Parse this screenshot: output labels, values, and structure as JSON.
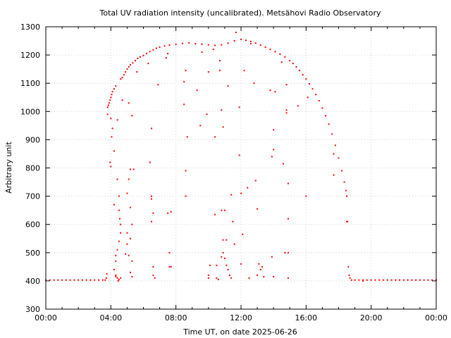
{
  "chart_data": {
    "type": "scatter",
    "title": "Total UV radiation intensity (uncalibrated). Metsähovi Radio Observatory",
    "xlabel": "Time UT, on date 2025-06-26",
    "ylabel": "Arbitrary unit",
    "xlim": [
      0,
      24
    ],
    "ylim": [
      300,
      1300
    ],
    "x_ticks": [
      {
        "value": 0,
        "label": "00:00"
      },
      {
        "value": 4,
        "label": "04:00"
      },
      {
        "value": 8,
        "label": "08:00"
      },
      {
        "value": 12,
        "label": "12:00"
      },
      {
        "value": 16,
        "label": "16:00"
      },
      {
        "value": 20,
        "label": "20:00"
      },
      {
        "value": 24,
        "label": "00:00"
      }
    ],
    "y_ticks": [
      {
        "value": 300,
        "label": "300"
      },
      {
        "value": 400,
        "label": "400"
      },
      {
        "value": 500,
        "label": "500"
      },
      {
        "value": 600,
        "label": "600"
      },
      {
        "value": 700,
        "label": "700"
      },
      {
        "value": 800,
        "label": "800"
      },
      {
        "value": 900,
        "label": "900"
      },
      {
        "value": 1000,
        "label": "1000"
      },
      {
        "value": 1100,
        "label": "1100"
      },
      {
        "value": 1200,
        "label": "1200"
      },
      {
        "value": 1300,
        "label": "1300"
      }
    ],
    "grid": true,
    "marker_color": "#ff0000",
    "series": [
      {
        "points": [
          [
            0.0,
            403
          ],
          [
            0.25,
            403
          ],
          [
            0.5,
            403
          ],
          [
            0.75,
            403
          ],
          [
            1.0,
            403
          ],
          [
            1.25,
            403
          ],
          [
            1.5,
            403
          ],
          [
            1.75,
            403
          ],
          [
            2.0,
            403
          ],
          [
            2.25,
            403
          ],
          [
            2.5,
            403
          ],
          [
            2.75,
            403
          ],
          [
            3.0,
            403
          ],
          [
            3.25,
            403
          ],
          [
            3.5,
            403
          ],
          [
            3.65,
            403
          ],
          [
            3.72,
            410
          ],
          [
            3.75,
            425
          ],
          [
            3.8,
            1015
          ],
          [
            3.85,
            1022
          ],
          [
            3.9,
            1030
          ],
          [
            3.95,
            1040
          ],
          [
            4.0,
            1050
          ],
          [
            4.05,
            1060
          ],
          [
            4.1,
            1070
          ],
          [
            4.2,
            1080
          ],
          [
            4.3,
            1090
          ],
          [
            4.6,
            1115
          ],
          [
            4.7,
            1120
          ],
          [
            4.8,
            1130
          ],
          [
            4.9,
            1140
          ],
          [
            5.0,
            1150
          ],
          [
            5.1,
            1158
          ],
          [
            5.2,
            1165
          ],
          [
            5.35,
            1172
          ],
          [
            5.5,
            1180
          ],
          [
            5.65,
            1188
          ],
          [
            5.8,
            1193
          ],
          [
            6.0,
            1198
          ],
          [
            6.2,
            1205
          ],
          [
            6.4,
            1212
          ],
          [
            6.6,
            1218
          ],
          [
            6.8,
            1224
          ],
          [
            7.0,
            1228
          ],
          [
            7.3,
            1232
          ],
          [
            7.6,
            1235
          ],
          [
            8.0,
            1238
          ],
          [
            8.4,
            1241
          ],
          [
            8.8,
            1243
          ],
          [
            9.2,
            1240
          ],
          [
            9.6,
            1238
          ],
          [
            10.0,
            1236
          ],
          [
            10.4,
            1234
          ],
          [
            10.8,
            1236
          ],
          [
            11.2,
            1242
          ],
          [
            11.6,
            1250
          ],
          [
            12.0,
            1255
          ],
          [
            12.3,
            1252
          ],
          [
            12.6,
            1248
          ],
          [
            12.9,
            1242
          ],
          [
            13.2,
            1235
          ],
          [
            13.5,
            1228
          ],
          [
            13.8,
            1220
          ],
          [
            14.1,
            1212
          ],
          [
            14.4,
            1203
          ],
          [
            14.7,
            1193
          ],
          [
            15.0,
            1180
          ],
          [
            15.2,
            1170
          ],
          [
            15.4,
            1158
          ],
          [
            15.6,
            1145
          ],
          [
            15.8,
            1130
          ],
          [
            16.0,
            1115
          ],
          [
            16.2,
            1098
          ],
          [
            16.4,
            1080
          ],
          [
            16.6,
            1060
          ],
          [
            16.8,
            1038
          ],
          [
            17.0,
            1012
          ],
          [
            17.2,
            985
          ],
          [
            17.4,
            955
          ],
          [
            17.6,
            920
          ],
          [
            17.8,
            880
          ],
          [
            18.0,
            835
          ],
          [
            18.2,
            790
          ],
          [
            18.35,
            750
          ],
          [
            18.45,
            720
          ],
          [
            18.5,
            700
          ],
          [
            18.55,
            610
          ],
          [
            18.6,
            450
          ],
          [
            18.65,
            420
          ],
          [
            18.7,
            410
          ],
          [
            18.8,
            403
          ],
          [
            19.0,
            403
          ],
          [
            19.25,
            403
          ],
          [
            19.5,
            403
          ],
          [
            19.75,
            403
          ],
          [
            20.0,
            403
          ],
          [
            20.25,
            403
          ],
          [
            20.5,
            403
          ],
          [
            20.75,
            403
          ],
          [
            21.0,
            403
          ],
          [
            21.25,
            403
          ],
          [
            21.5,
            403
          ],
          [
            21.75,
            403
          ],
          [
            22.0,
            403
          ],
          [
            22.25,
            403
          ],
          [
            22.5,
            403
          ],
          [
            22.75,
            403
          ],
          [
            23.0,
            403
          ],
          [
            23.25,
            403
          ],
          [
            23.5,
            403
          ],
          [
            23.75,
            403
          ],
          [
            24.0,
            403
          ],
          [
            3.8,
            990
          ],
          [
            4.0,
            975
          ],
          [
            4.1,
            940
          ],
          [
            4.05,
            910
          ],
          [
            4.2,
            860
          ],
          [
            3.95,
            820
          ],
          [
            4.0,
            805
          ],
          [
            4.4,
            760
          ],
          [
            4.5,
            700
          ],
          [
            4.5,
            650
          ],
          [
            4.2,
            670
          ],
          [
            4.55,
            620
          ],
          [
            4.6,
            600
          ],
          [
            4.6,
            570
          ],
          [
            4.5,
            540
          ],
          [
            4.4,
            510
          ],
          [
            4.3,
            490
          ],
          [
            4.3,
            470
          ],
          [
            4.2,
            440
          ],
          [
            4.3,
            420
          ],
          [
            4.4,
            410
          ],
          [
            4.5,
            405
          ],
          [
            4.4,
            970
          ],
          [
            4.7,
            1040
          ],
          [
            5.1,
            1030
          ],
          [
            5.3,
            985
          ],
          [
            5.2,
            795
          ],
          [
            5.4,
            795
          ],
          [
            5.1,
            760
          ],
          [
            5.0,
            710
          ],
          [
            5.2,
            660
          ],
          [
            5.3,
            600
          ],
          [
            5.0,
            570
          ],
          [
            5.2,
            550
          ],
          [
            5.0,
            530
          ],
          [
            4.9,
            495
          ],
          [
            5.1,
            490
          ],
          [
            5.3,
            470
          ],
          [
            5.2,
            430
          ],
          [
            5.3,
            415
          ],
          [
            5.6,
            1140
          ],
          [
            6.3,
            1170
          ],
          [
            6.5,
            940
          ],
          [
            6.4,
            820
          ],
          [
            6.5,
            700
          ],
          [
            6.5,
            690
          ],
          [
            6.6,
            640
          ],
          [
            6.5,
            610
          ],
          [
            6.6,
            450
          ],
          [
            6.6,
            420
          ],
          [
            6.7,
            410
          ],
          [
            6.9,
            1095
          ],
          [
            7.4,
            1190
          ],
          [
            7.5,
            1205
          ],
          [
            7.6,
            500
          ],
          [
            7.7,
            450
          ],
          [
            7.5,
            640
          ],
          [
            7.7,
            645
          ],
          [
            7.6,
            450
          ],
          [
            8.5,
            1025
          ],
          [
            8.6,
            1145
          ],
          [
            8.5,
            1105
          ],
          [
            8.7,
            910
          ],
          [
            8.6,
            790
          ],
          [
            8.6,
            700
          ],
          [
            9.3,
            1075
          ],
          [
            9.5,
            950
          ],
          [
            9.6,
            1210
          ],
          [
            9.9,
            990
          ],
          [
            10.0,
            1140
          ],
          [
            10.0,
            420
          ],
          [
            10.0,
            410
          ],
          [
            10.1,
            455
          ],
          [
            10.3,
            1220
          ],
          [
            10.4,
            910
          ],
          [
            10.4,
            635
          ],
          [
            10.5,
            455
          ],
          [
            10.5,
            410
          ],
          [
            10.6,
            405
          ],
          [
            10.7,
            1145
          ],
          [
            10.7,
            1180
          ],
          [
            10.8,
            1005
          ],
          [
            10.9,
            945
          ],
          [
            10.8,
            650
          ],
          [
            11.0,
            650
          ],
          [
            10.9,
            545
          ],
          [
            11.1,
            545
          ],
          [
            10.9,
            500
          ],
          [
            10.8,
            485
          ],
          [
            11.0,
            480
          ],
          [
            11.1,
            455
          ],
          [
            11.2,
            440
          ],
          [
            11.3,
            420
          ],
          [
            11.4,
            410
          ],
          [
            11.2,
            1090
          ],
          [
            11.4,
            705
          ],
          [
            11.5,
            610
          ],
          [
            11.6,
            530
          ],
          [
            11.7,
            1280
          ],
          [
            11.9,
            1015
          ],
          [
            11.9,
            845
          ],
          [
            12.0,
            710
          ],
          [
            12.1,
            565
          ],
          [
            12.0,
            460
          ],
          [
            12.2,
            1145
          ],
          [
            12.4,
            730
          ],
          [
            12.5,
            410
          ],
          [
            12.6,
            1240
          ],
          [
            12.8,
            1100
          ],
          [
            12.9,
            755
          ],
          [
            13.0,
            655
          ],
          [
            13.1,
            460
          ],
          [
            13.2,
            440
          ],
          [
            13.3,
            450
          ],
          [
            13.4,
            415
          ],
          [
            13.0,
            420
          ],
          [
            13.8,
            1075
          ],
          [
            13.9,
            840
          ],
          [
            14.0,
            935
          ],
          [
            14.0,
            865
          ],
          [
            14.1,
            1070
          ],
          [
            13.9,
            485
          ],
          [
            14.0,
            415
          ],
          [
            14.5,
            1175
          ],
          [
            14.6,
            815
          ],
          [
            14.7,
            500
          ],
          [
            14.8,
            1095
          ],
          [
            14.8,
            1005
          ],
          [
            14.8,
            995
          ],
          [
            14.9,
            745
          ],
          [
            14.9,
            620
          ],
          [
            14.9,
            500
          ],
          [
            14.9,
            410
          ],
          [
            15.5,
            1020
          ],
          [
            16.1,
            1050
          ],
          [
            16.0,
            700
          ],
          [
            17.7,
            850
          ],
          [
            17.7,
            775
          ],
          [
            18.5,
            610
          ],
          [
            19.5,
            400
          ],
          [
            4.3,
            415
          ],
          [
            4.45,
            400
          ],
          [
            4.6,
            410
          ]
        ]
      }
    ]
  }
}
